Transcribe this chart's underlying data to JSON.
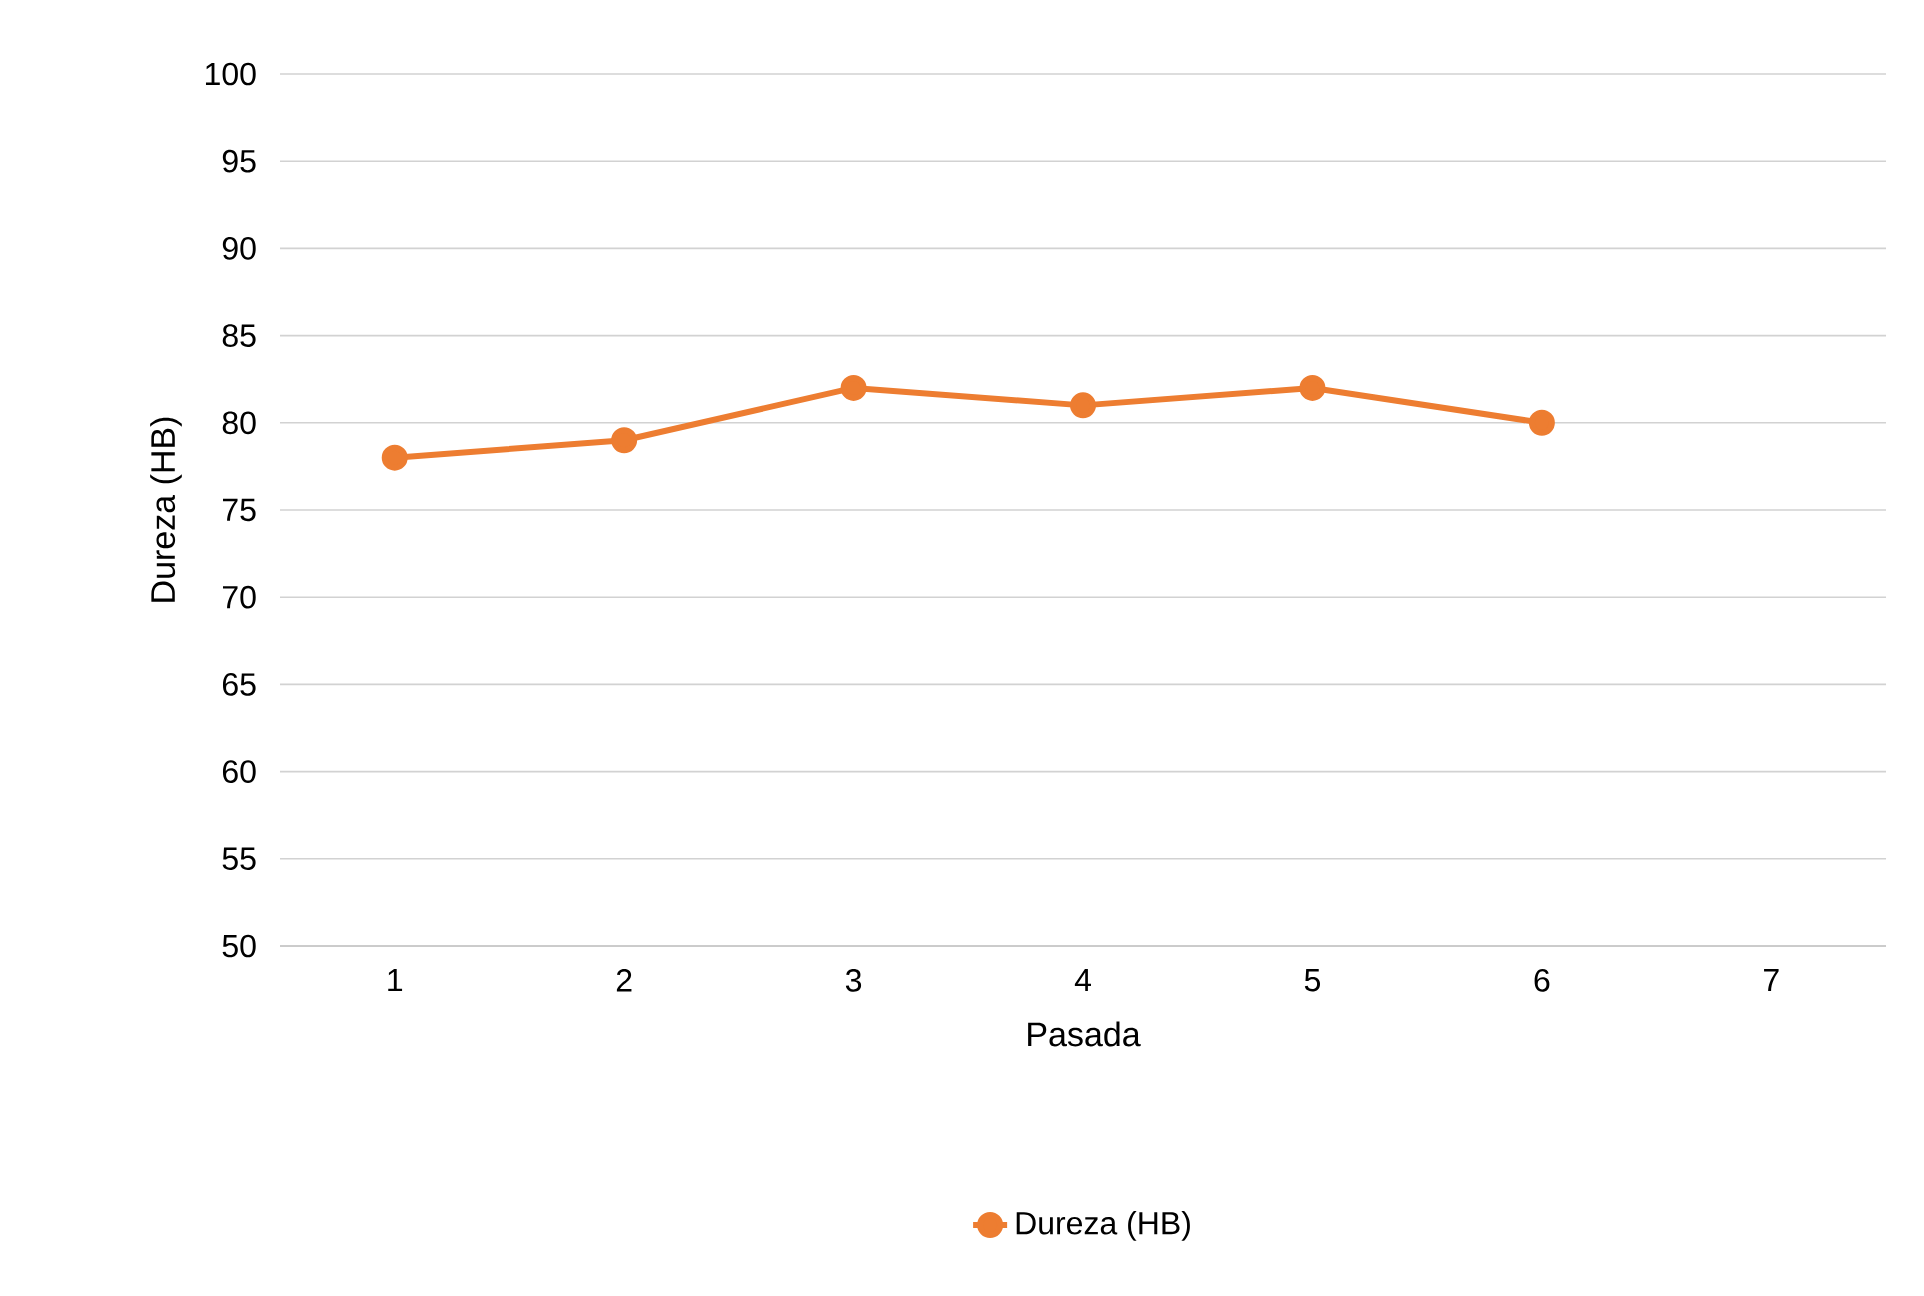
{
  "chart_data": {
    "type": "line",
    "xlabel": "Pasada",
    "ylabel": "Dureza (HB)",
    "categories": [
      "1",
      "2",
      "3",
      "4",
      "5",
      "6",
      "7"
    ],
    "series": [
      {
        "name": "Dureza (HB)",
        "color": "#ed7d31",
        "values": [
          78,
          79,
          82,
          81,
          82,
          80,
          null
        ]
      }
    ],
    "ylim": [
      50,
      100
    ],
    "yticks": [
      50,
      55,
      60,
      65,
      70,
      75,
      80,
      85,
      90,
      95,
      100
    ],
    "grid": "y",
    "legend": "bottom",
    "marker": "circle",
    "line_style": "solid"
  }
}
